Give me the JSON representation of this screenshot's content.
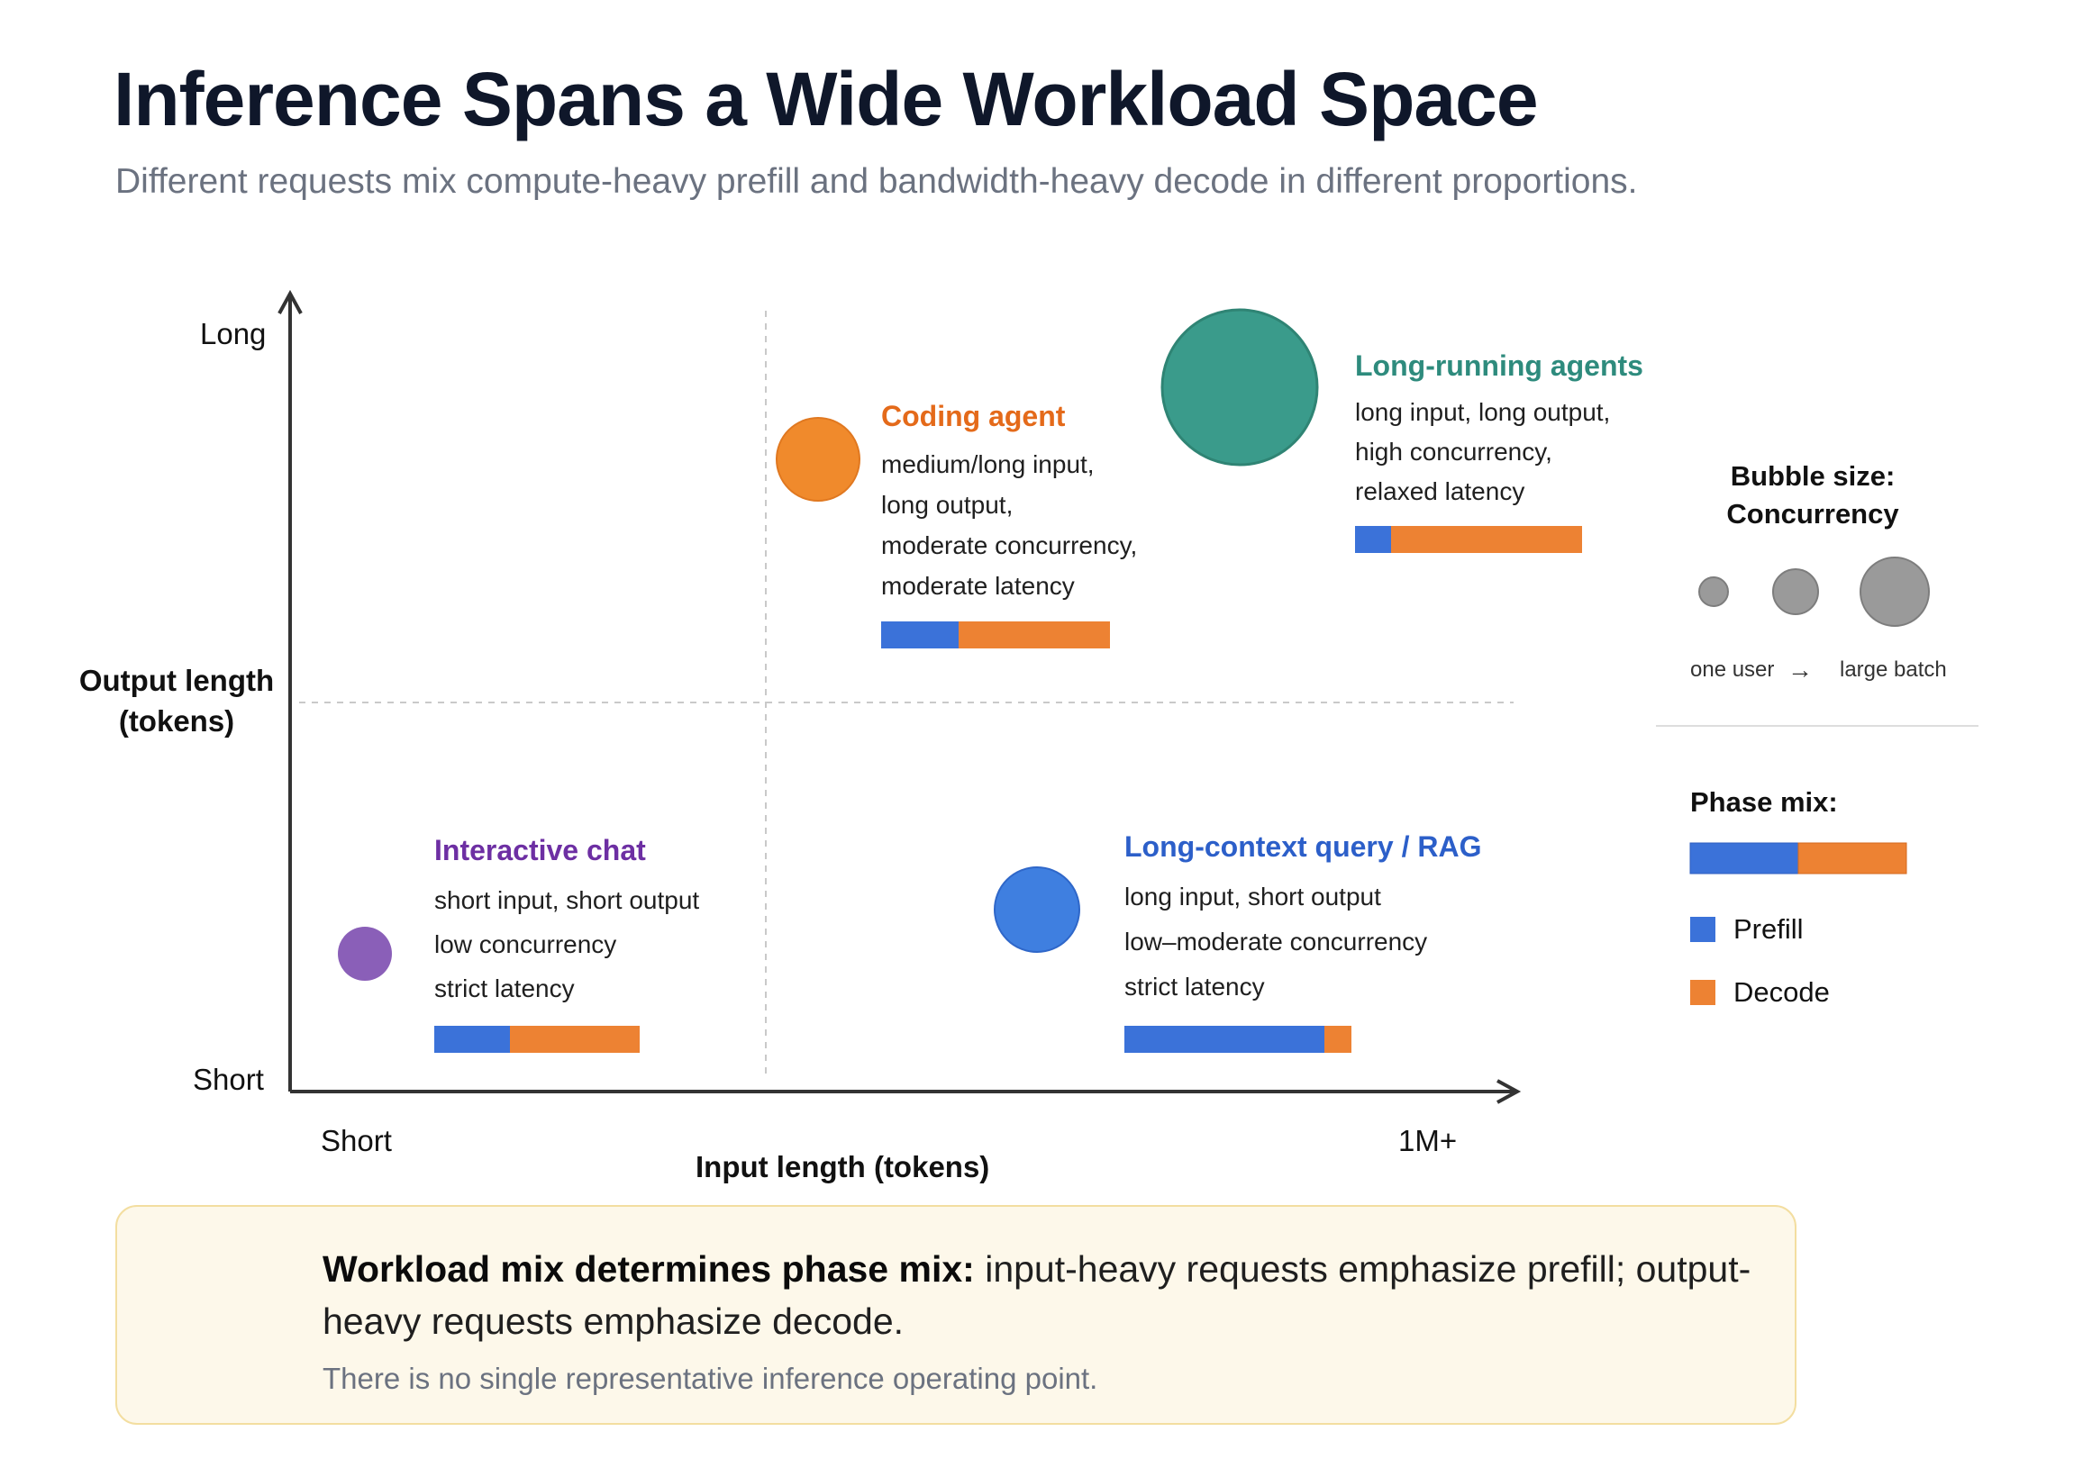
{
  "header": {
    "title": "Inference Spans a Wide Workload Space",
    "subtitle": "Different requests mix compute-heavy prefill and bandwidth-heavy decode in different proportions."
  },
  "axes": {
    "y_title_line1": "Output length",
    "y_title_line2": "(tokens)",
    "y_high": "Long",
    "y_low": "Short",
    "x_title": "Input length (tokens)",
    "x_low": "Short",
    "x_high": "1M+"
  },
  "colors": {
    "prefill": "#3b72d9",
    "decode": "#ed8233",
    "chat": "#8a5fb8",
    "coding": "#f08a2c",
    "agents": "#3a9b8b",
    "rag": "#3f7fe0"
  },
  "workloads": [
    {
      "id": "chat",
      "name": "Interactive chat",
      "color": "#6d2fa3",
      "lines": [
        "short input, short output",
        "low concurrency",
        "strict latency"
      ],
      "prefill_fraction": 0.37
    },
    {
      "id": "coding",
      "name": "Coding agent",
      "color": "#e46a1a",
      "lines": [
        "medium/long input,",
        "long output,",
        "moderate concurrency,",
        "moderate latency"
      ],
      "prefill_fraction": 0.34
    },
    {
      "id": "agents",
      "name": "Long-running agents",
      "color": "#2e8b7d",
      "lines": [
        "long input, long output,",
        "high concurrency,",
        "relaxed latency"
      ],
      "prefill_fraction": 0.16
    },
    {
      "id": "rag",
      "name": "Long-context query / RAG",
      "color": "#2c5fc9",
      "lines": [
        "long input, short output",
        "low–moderate concurrency",
        "strict latency"
      ],
      "prefill_fraction": 0.88
    }
  ],
  "legend": {
    "bubble_title_line1": "Bubble size:",
    "bubble_title_line2": "Concurrency",
    "bubble_low": "one user",
    "bubble_arrow": "→",
    "bubble_high": "large batch",
    "phase_title": "Phase mix:",
    "prefill_label": "Prefill",
    "decode_label": "Decode"
  },
  "callout": {
    "bold": "Workload mix determines phase mix:",
    "text": " input-heavy requests emphasize prefill; output-heavy requests emphasize decode.",
    "sub": "There is no single representative inference operating point."
  }
}
